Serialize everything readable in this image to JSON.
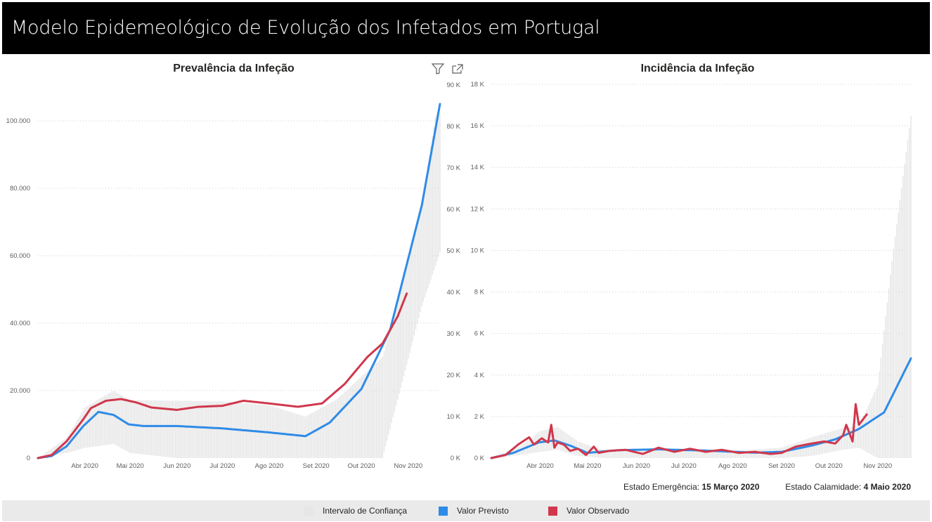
{
  "header": {
    "title": "Modelo Epidemeológico de Evolução dos Infetados em Portugal"
  },
  "charts": {
    "left_title": "Prevalência da Infeção",
    "right_title": "Incidência da Infeção"
  },
  "notes": {
    "emergencia_label": "Estado Emergência:",
    "emergencia_date": "15 Março 2020",
    "calamidade_label": "Estado Calamidade:",
    "calamidade_date": "4 Maio 2020"
  },
  "legend": {
    "items": [
      {
        "label": "Intervalo de Confiança",
        "color": "#e6e6e6"
      },
      {
        "label": "Valor Previsto",
        "color": "#2e8be6"
      },
      {
        "label": "Valor Observado",
        "color": "#d0374c"
      }
    ]
  },
  "colors": {
    "band": "#e4e4e4",
    "predicted": "#2e8be6",
    "observed": "#d0374c",
    "grid": "#cccccc"
  },
  "icons": [
    "filter-icon",
    "focus-mode-icon"
  ],
  "chart_data": [
    {
      "type": "line",
      "title": "Prevalência da Infeção",
      "x_ticks": [
        "Abr 2020",
        "Mai 2020",
        "Jun 2020",
        "Jul 2020",
        "Ago 2020",
        "Set 2020",
        "Out 2020",
        "Nov 2020"
      ],
      "y_ticks": [
        "0",
        "20.000",
        "40.000",
        "60.000",
        "80.000",
        "100.000"
      ],
      "y_right_ticks": [
        "90 K",
        "80 K",
        "70 K",
        "60 K",
        "50 K",
        "40 K",
        "30 K",
        "20 K",
        "10 K",
        "0 K"
      ],
      "ylim": [
        0,
        100000
      ],
      "series": [
        {
          "name": "Valor Previsto",
          "x": [
            "2020-03-01",
            "2020-03-10",
            "2020-03-20",
            "2020-03-31",
            "2020-04-10",
            "2020-04-20",
            "2020-04-30",
            "2020-05-10",
            "2020-06-01",
            "2020-07-01",
            "2020-08-01",
            "2020-08-25",
            "2020-09-10",
            "2020-10-01",
            "2020-10-20",
            "2020-11-10",
            "2020-11-22"
          ],
          "y": [
            0,
            600,
            3500,
            9500,
            13700,
            12800,
            10000,
            9500,
            9500,
            8800,
            7600,
            6500,
            10500,
            20500,
            38000,
            75000,
            105000
          ]
        },
        {
          "name": "Valor Observado",
          "x": [
            "2020-03-01",
            "2020-03-10",
            "2020-03-20",
            "2020-03-31",
            "2020-04-05",
            "2020-04-15",
            "2020-04-25",
            "2020-05-05",
            "2020-05-15",
            "2020-06-01",
            "2020-06-15",
            "2020-07-01",
            "2020-07-15",
            "2020-08-01",
            "2020-08-20",
            "2020-09-05",
            "2020-09-20",
            "2020-10-05",
            "2020-10-15",
            "2020-10-25",
            "2020-10-31"
          ],
          "y": [
            0,
            900,
            5000,
            11500,
            14800,
            17000,
            17500,
            16500,
            15000,
            14300,
            15200,
            15500,
            17000,
            16200,
            15200,
            16200,
            22000,
            30000,
            34000,
            42000,
            48800
          ]
        },
        {
          "name": "Intervalo de Confiança",
          "x": [
            "2020-03-01",
            "2020-03-20",
            "2020-04-01",
            "2020-04-20",
            "2020-05-01",
            "2020-06-01",
            "2020-07-01",
            "2020-08-01",
            "2020-08-25",
            "2020-09-15",
            "2020-10-15",
            "2020-11-10",
            "2020-11-22"
          ],
          "low": [
            0,
            1500,
            3000,
            4200,
            1500,
            0,
            0,
            0,
            0,
            0,
            0,
            45000,
            61000
          ],
          "high": [
            0,
            6000,
            15000,
            20000,
            17200,
            17000,
            16800,
            15700,
            12300,
            17500,
            30000,
            75000,
            110000
          ]
        }
      ]
    },
    {
      "type": "line",
      "title": "Incidência da Infeção",
      "x_ticks": [
        "Abr 2020",
        "Mai 2020",
        "Jun 2020",
        "Jul 2020",
        "Ago 2020",
        "Set 2020",
        "Out 2020",
        "Nov 2020"
      ],
      "y_ticks": [
        "0 K",
        "2 K",
        "4 K",
        "6 K",
        "8 K",
        "10 K",
        "12 K",
        "14 K",
        "16 K",
        "18 K"
      ],
      "ylim": [
        0,
        18000
      ],
      "series": [
        {
          "name": "Valor Previsto",
          "x": [
            "2020-03-01",
            "2020-03-15",
            "2020-03-31",
            "2020-04-10",
            "2020-04-20",
            "2020-05-01",
            "2020-05-20",
            "2020-06-15",
            "2020-07-15",
            "2020-08-15",
            "2020-09-01",
            "2020-09-20",
            "2020-10-05",
            "2020-10-20",
            "2020-11-05",
            "2020-11-22"
          ],
          "y": [
            0,
            250,
            750,
            850,
            600,
            250,
            380,
            420,
            360,
            260,
            300,
            600,
            900,
            1400,
            2200,
            4800
          ]
        },
        {
          "name": "Valor Observado",
          "x": [
            "2020-03-01",
            "2020-03-10",
            "2020-03-18",
            "2020-03-25",
            "2020-03-28",
            "2020-04-02",
            "2020-04-06",
            "2020-04-08",
            "2020-04-10",
            "2020-04-12",
            "2020-04-16",
            "2020-04-20",
            "2020-04-25",
            "2020-04-30",
            "2020-05-05",
            "2020-05-08",
            "2020-05-15",
            "2020-05-25",
            "2020-06-05",
            "2020-06-15",
            "2020-06-25",
            "2020-07-05",
            "2020-07-15",
            "2020-07-25",
            "2020-08-05",
            "2020-08-15",
            "2020-08-25",
            "2020-09-01",
            "2020-09-10",
            "2020-09-20",
            "2020-09-28",
            "2020-10-05",
            "2020-10-10",
            "2020-10-12",
            "2020-10-16",
            "2020-10-18",
            "2020-10-20",
            "2020-10-22",
            "2020-10-25"
          ],
          "y": [
            0,
            150,
            650,
            1000,
            650,
            950,
            750,
            1600,
            500,
            750,
            650,
            350,
            450,
            150,
            550,
            250,
            350,
            400,
            200,
            500,
            300,
            450,
            300,
            400,
            250,
            300,
            200,
            250,
            550,
            700,
            800,
            700,
            1100,
            1600,
            800,
            2600,
            1600,
            1800,
            2100
          ]
        },
        {
          "name": "Intervalo de Confiança",
          "x": [
            "2020-03-01",
            "2020-03-20",
            "2020-04-01",
            "2020-04-12",
            "2020-04-25",
            "2020-05-10",
            "2020-06-01",
            "2020-07-01",
            "2020-08-01",
            "2020-09-01",
            "2020-09-20",
            "2020-10-10",
            "2020-10-20",
            "2020-11-01",
            "2020-11-10",
            "2020-11-22"
          ],
          "low": [
            0,
            150,
            300,
            400,
            100,
            0,
            0,
            0,
            0,
            0,
            100,
            400,
            500,
            0,
            0,
            0
          ],
          "high": [
            0,
            600,
            1300,
            1500,
            800,
            400,
            450,
            450,
            350,
            500,
            1000,
            1450,
            1550,
            3500,
            9500,
            16500
          ]
        }
      ]
    }
  ]
}
